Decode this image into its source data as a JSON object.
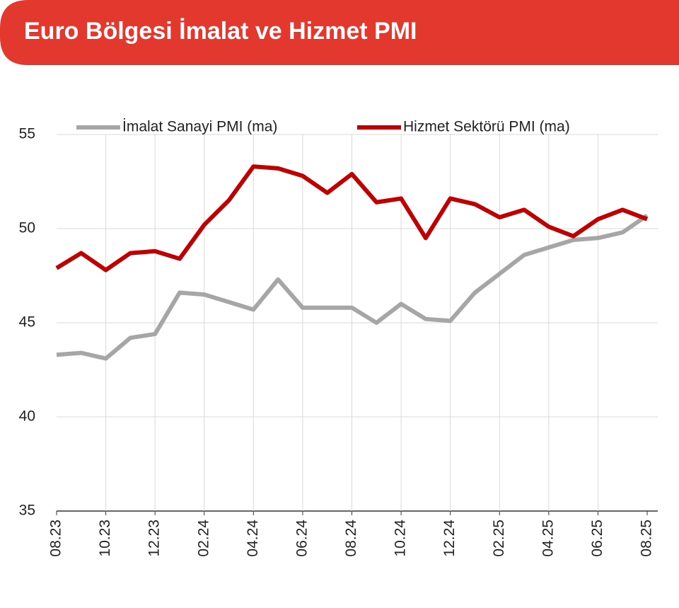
{
  "chart_data": {
    "type": "line",
    "title": "Euro Bölgesi İmalat ve Hizmet PMI",
    "categories": [
      "08.23",
      null,
      "10.23",
      null,
      "12.23",
      null,
      "02.24",
      null,
      "04.24",
      null,
      "06.24",
      null,
      "08.24",
      null,
      "10.24",
      null,
      "12.24",
      null,
      "02.25",
      null,
      "04.25",
      null,
      "06.25",
      null,
      "08.25"
    ],
    "series": [
      {
        "name": "İmalat Sanayi PMI (ma)",
        "color": "#a6a6a6",
        "values": [
          43.3,
          43.4,
          43.1,
          44.2,
          44.4,
          46.6,
          46.5,
          46.1,
          45.7,
          47.3,
          45.8,
          45.8,
          45.8,
          45.0,
          46.0,
          45.2,
          45.1,
          46.6,
          47.6,
          48.6,
          49.0,
          49.4,
          49.5,
          49.8,
          50.7
        ]
      },
      {
        "name": "Hizmet Sektörü PMI (ma)",
        "color": "#c00000",
        "values": [
          47.9,
          48.7,
          47.8,
          48.7,
          48.8,
          48.4,
          50.2,
          51.5,
          53.3,
          53.2,
          52.8,
          51.9,
          52.9,
          51.4,
          51.6,
          49.5,
          51.6,
          51.3,
          50.6,
          51.0,
          50.1,
          49.6,
          50.5,
          51.0,
          50.5
        ]
      }
    ],
    "ylim": [
      35,
      55
    ],
    "yticks": [
      35,
      40,
      45,
      50,
      55
    ],
    "grid": true,
    "legend": "top"
  }
}
